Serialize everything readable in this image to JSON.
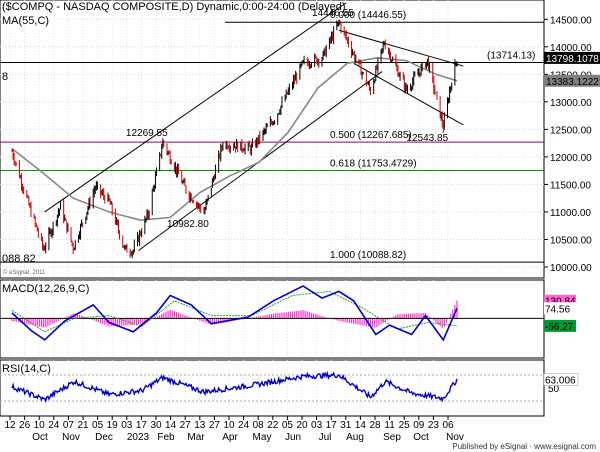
{
  "header": {
    "title": "($COMPQ - NASDAQ COMPOSITE,D) Dynamic,0:00-24:00 (Delayed)"
  },
  "chart_data": [
    {
      "type": "line",
      "panel": "price",
      "title": "($COMPQ - NASDAQ COMPOSITE,D) Dynamic,0:00-24:00 (Delayed)",
      "series": [
        {
          "name": "$COMPQ",
          "role": "ohlc-bars",
          "x": [
            "2022-09-12",
            "2022-09-30",
            "2022-10-12",
            "2022-10-28",
            "2022-11-09",
            "2022-11-30",
            "2022-12-13",
            "2022-12-28",
            "2023-01-05",
            "2023-01-19",
            "2023-02-02",
            "2023-02-24",
            "2023-03-13",
            "2023-03-31",
            "2023-04-27",
            "2023-05-19",
            "2023-06-15",
            "2023-07-03",
            "2023-07-19",
            "2023-08-18",
            "2023-08-31",
            "2023-09-21",
            "2023-10-11",
            "2023-10-26",
            "2023-11-02",
            "2023-11-08"
          ],
          "y": [
            12100,
            11000,
            10320,
            11100,
            10350,
            11450,
            11190,
            10320,
            10300,
            10960,
            12269.55,
            11400,
            10982.8,
            12250,
            12150,
            12700,
            13700,
            13800,
            14446.55,
            13200,
            14080,
            13220,
            13750,
            12543.85,
            13300,
            13800
          ]
        },
        {
          "name": "MA(55,C)",
          "role": "moving-average",
          "x": [
            "2022-09-12",
            "2022-10-12",
            "2022-11-09",
            "2022-12-13",
            "2023-01-12",
            "2023-02-09",
            "2023-03-09",
            "2023-04-06",
            "2023-05-04",
            "2023-06-01",
            "2023-06-29",
            "2023-07-27",
            "2023-08-24",
            "2023-09-21",
            "2023-10-19",
            "2023-11-08"
          ],
          "y": [
            12150,
            11700,
            11250,
            11000,
            10850,
            10900,
            11350,
            11650,
            11900,
            12450,
            13250,
            13700,
            13800,
            13750,
            13500,
            13383.1222
          ]
        }
      ],
      "annotations": [
        {
          "x": "2023-02-02",
          "y": 12269.55,
          "text": "12269.55"
        },
        {
          "x": "2023-03-13",
          "y": 10982.8,
          "text": "10982.80"
        },
        {
          "x": "2023-07-19",
          "y": 14446.55,
          "text": "14446.55"
        },
        {
          "x": "2023-10-26",
          "y": 12543.85,
          "text": "12543.85"
        }
      ],
      "fib_levels": [
        {
          "value": 14446.55,
          "text": "0.000 (14446.55)",
          "color": "#000000"
        },
        {
          "value": 12267.685,
          "text": "0.500 (12267.685)",
          "color": "#990066"
        },
        {
          "value": 11753.4729,
          "text": "0.618 (11753.4729)",
          "color": "#009900"
        },
        {
          "value": 10088.82,
          "text": "1.000 (10088.82)",
          "color": "#000000"
        }
      ],
      "hline": {
        "value": 13714.13,
        "text": "(13714.13)"
      },
      "last_value_tags": [
        {
          "text": "13798.1078",
          "value": 13798.1078,
          "bg": "#000000",
          "fg": "#ffffff"
        },
        {
          "text": "13383.1222",
          "value": 13383.1222,
          "bg": "#808080",
          "fg": "#000000"
        }
      ],
      "trendlines": [
        {
          "role": "channel-upper",
          "x": [
            "2022-10-13",
            "2023-07-26"
          ],
          "y": [
            11000,
            14800
          ]
        },
        {
          "role": "channel-lower",
          "x": [
            "2023-01-10",
            "2023-08-29"
          ],
          "y": [
            10300,
            13550
          ]
        },
        {
          "role": "falling-upper",
          "x": [
            "2023-07-19",
            "2023-11-14"
          ],
          "y": [
            14300,
            13650
          ]
        },
        {
          "role": "falling-lower",
          "x": [
            "2023-08-02",
            "2023-11-14"
          ],
          "y": [
            13700,
            12580
          ]
        }
      ],
      "left_labels": [
        "8",
        "088.82"
      ],
      "ylim": [
        9800,
        14850
      ],
      "yticks": [
        10000,
        10500,
        11000,
        11500,
        12000,
        12500,
        13000,
        13500,
        14000,
        14500
      ],
      "ytick_labels": [
        "10000.00",
        "10500.00",
        "11000.00",
        "11500.00",
        "12000.00",
        "12500.00",
        "13000.00",
        "13500.00",
        "14000.00",
        "14500.00"
      ],
      "watermark": "© eSignal, 2011",
      "grid": true
    },
    {
      "type": "line",
      "panel": "macd",
      "label": "MACD(12,26,9,C)",
      "series": [
        {
          "name": "MACD",
          "role": "macd",
          "x": [
            "2022-09-12",
            "2022-09-30",
            "2022-10-13",
            "2022-11-01",
            "2022-11-28",
            "2022-12-13",
            "2023-01-05",
            "2023-01-27",
            "2023-02-09",
            "2023-03-01",
            "2023-03-20",
            "2023-04-24",
            "2023-05-18",
            "2023-06-15",
            "2023-07-03",
            "2023-07-19",
            "2023-08-02",
            "2023-08-23",
            "2023-09-05",
            "2023-09-26",
            "2023-10-09",
            "2023-10-26",
            "2023-11-08"
          ],
          "y": [
            40,
            -90,
            -160,
            -20,
            100,
            -30,
            -100,
            40,
            170,
            100,
            -40,
            10,
            130,
            240,
            150,
            200,
            130,
            -120,
            -50,
            -120,
            20,
            -160,
            74.56
          ]
        },
        {
          "name": "Signal",
          "role": "signal",
          "x": [
            "2022-09-12",
            "2022-10-13",
            "2022-11-10",
            "2022-12-13",
            "2023-01-13",
            "2023-02-13",
            "2023-03-20",
            "2023-04-27",
            "2023-06-05",
            "2023-07-10",
            "2023-08-10",
            "2023-09-12",
            "2023-10-12",
            "2023-11-08"
          ],
          "y": [
            60,
            -100,
            0,
            20,
            -60,
            130,
            20,
            20,
            170,
            200,
            80,
            -80,
            -30,
            -56.27
          ]
        },
        {
          "name": "Histogram",
          "role": "histogram",
          "color": "#ff33cc",
          "x": [
            "2022-09-12",
            "2022-10-13",
            "2022-11-10",
            "2022-12-13",
            "2023-01-13",
            "2023-02-09",
            "2023-03-20",
            "2023-05-18",
            "2023-06-15",
            "2023-07-19",
            "2023-08-23",
            "2023-09-12",
            "2023-10-09",
            "2023-10-26",
            "2023-11-08"
          ],
          "y": [
            -20,
            -70,
            40,
            -60,
            -45,
            65,
            -50,
            35,
            60,
            -20,
            -70,
            30,
            40,
            -80,
            130.84
          ]
        }
      ],
      "value_tags": [
        {
          "text": "130.84",
          "value": 130.84,
          "bg": "#ff66cc",
          "fg": "#000000"
        },
        {
          "text": "74.56",
          "value": 74.56,
          "bg": "#ffffff",
          "fg": "#000000"
        },
        {
          "text": "-56.27",
          "value": -56.27,
          "bg": "#009933",
          "fg": "#000000"
        }
      ],
      "zero_line": 0,
      "ylim": [
        -280,
        270
      ]
    },
    {
      "type": "line",
      "panel": "rsi",
      "label": "RSI(14,C)",
      "series": [
        {
          "name": "RSI(14,C)",
          "role": "rsi",
          "color": "#0000cc",
          "x": [
            "2022-09-12",
            "2022-10-13",
            "2022-11-10",
            "2022-12-13",
            "2023-01-13",
            "2023-02-02",
            "2023-03-13",
            "2023-05-01",
            "2023-06-15",
            "2023-07-19",
            "2023-08-18",
            "2023-09-01",
            "2023-09-26",
            "2023-10-26",
            "2023-11-08"
          ],
          "y": [
            52,
            32,
            60,
            40,
            46,
            66,
            44,
            55,
            68,
            70,
            36,
            60,
            42,
            34,
            63.006
          ]
        }
      ],
      "value_tags": [
        {
          "text": "63.006",
          "value": 63.006,
          "bg": "#ffffff",
          "fg": "#000000"
        }
      ],
      "ref_lines": [
        70,
        30
      ],
      "ytick_labels": [
        "50"
      ],
      "ylim": [
        10,
        90
      ]
    }
  ],
  "x_axis": {
    "day_labels": [
      "12",
      "26",
      "10",
      "24",
      "07",
      "21",
      "05",
      "19",
      "03",
      "17",
      "30",
      "14",
      "27",
      "13",
      "27",
      "10",
      "24",
      "08",
      "22",
      "05",
      "20",
      "03",
      "17",
      "31",
      "14",
      "28",
      "11",
      "25",
      "09",
      "23",
      "06"
    ],
    "month_labels": [
      "Oct",
      "Nov",
      "Dec",
      "2023",
      "Feb",
      "Mar",
      "Apr",
      "May",
      "Jun",
      "Jul",
      "Aug",
      "Sep",
      "Oct",
      "Nov"
    ]
  },
  "footer": {
    "text": "Published by eSignal · www.esignal.com"
  }
}
